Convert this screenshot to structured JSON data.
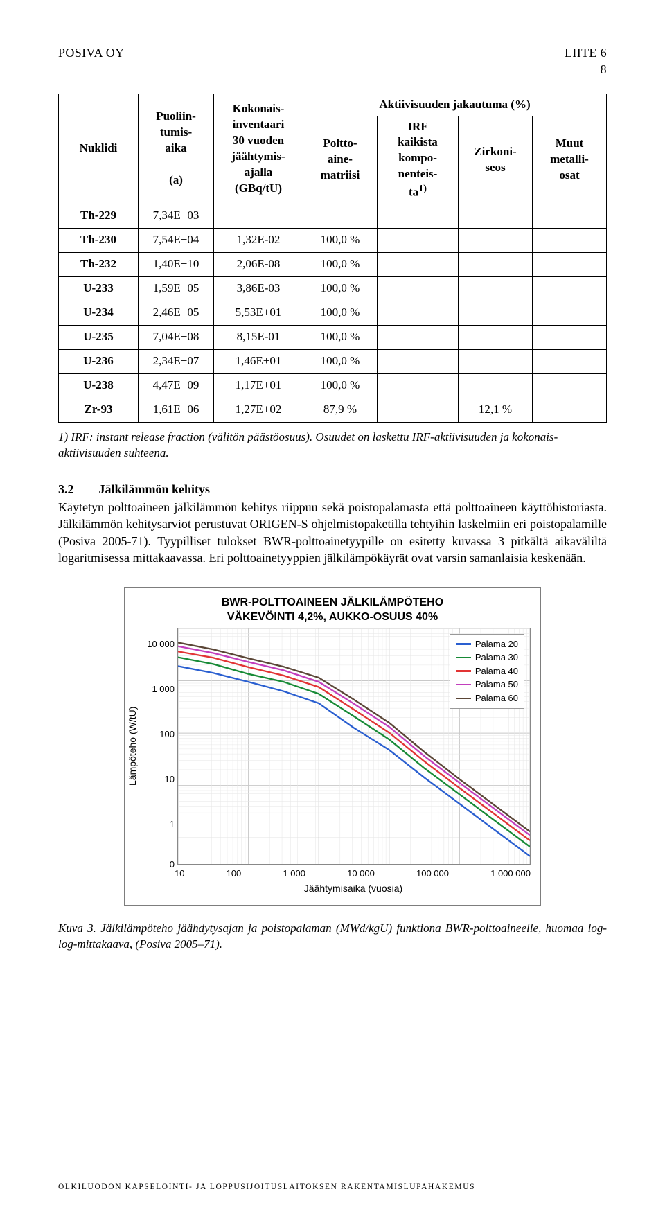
{
  "header": {
    "left": "POSIVA OY",
    "right_top": "LIITE 6",
    "right_sub": "8"
  },
  "table": {
    "columns": {
      "c1": "Nuklidi",
      "c2": "Puoliin-\ntumis-\naika",
      "c2b": "(a)",
      "c3": "Kokonais-\ninventaari\n30 vuoden\njäähtymis-\najalla\n(GBq/tU)",
      "c4": "Aktiivisuuden jakautuma (%)",
      "c4a": "Poltto-\naine-\nmatriisi",
      "c4b": "IRF\nkaikista\nkompo-\nnenteis-\nta",
      "c4b_sup": "1)",
      "c4c": "Zirkoni-\nseos",
      "c4d": "Muut\nmetalli-\nosat"
    },
    "rows": [
      {
        "n": "Th-229",
        "hl": "7,34E+03",
        "inv": "",
        "d": [
          "",
          "",
          "",
          ""
        ]
      },
      {
        "n": "Th-230",
        "hl": "7,54E+04",
        "inv": "1,32E-02",
        "d": [
          "100,0 %",
          "",
          "",
          ""
        ]
      },
      {
        "n": "Th-232",
        "hl": "1,40E+10",
        "inv": "2,06E-08",
        "d": [
          "100,0 %",
          "",
          "",
          ""
        ]
      },
      {
        "n": "U-233",
        "hl": "1,59E+05",
        "inv": "3,86E-03",
        "d": [
          "100,0 %",
          "",
          "",
          ""
        ]
      },
      {
        "n": "U-234",
        "hl": "2,46E+05",
        "inv": "5,53E+01",
        "d": [
          "100,0 %",
          "",
          "",
          ""
        ]
      },
      {
        "n": "U-235",
        "hl": "7,04E+08",
        "inv": "8,15E-01",
        "d": [
          "100,0 %",
          "",
          "",
          ""
        ]
      },
      {
        "n": "U-236",
        "hl": "2,34E+07",
        "inv": "1,46E+01",
        "d": [
          "100,0 %",
          "",
          "",
          ""
        ]
      },
      {
        "n": "U-238",
        "hl": "4,47E+09",
        "inv": "1,17E+01",
        "d": [
          "100,0 %",
          "",
          "",
          ""
        ]
      },
      {
        "n": "Zr-93",
        "hl": "1,61E+06",
        "inv": "1,27E+02",
        "d": [
          "87,9 %",
          "",
          "12,1 %",
          ""
        ]
      }
    ]
  },
  "footnote": "1) IRF: instant release fraction (välitön päästöosuus). Osuudet on laskettu IRF-aktiivisuuden ja kokonais-\naktiivisuuden suhteena.",
  "section": {
    "num": "3.2",
    "title": "Jälkilämmön kehitys"
  },
  "para": "Käytetyn polttoaineen jälkilämmön kehitys riippuu sekä poistopalamasta että polttoaineen käyttöhistoriasta. Jälkilämmön kehitysarviot perustuvat ORIGEN-S ohjelmistopaketilla tehtyihin laskelmiin eri poistopalamille (Posiva 2005-71). Tyypilliset tulokset BWR-polttoainetyypille on esitetty kuvassa 3 pitkältä aikaväliltä logaritmisessa mittakaavassa. Eri polttoainetyyppien jälkilämpökäyrät ovat varsin samanlaisia keskenään.",
  "chart": {
    "title_l1": "BWR-POLTTOAINEEN JÄLKILÄMPÖTEHO",
    "title_l2": "VÄKEVÖINTI 4,2%, AUKKO-OSUUS 40%",
    "ylabel": "Lämpöteho (W/tU)",
    "xlabel": "Jäähtymisaika (vuosia)",
    "yticks": [
      "0",
      "1",
      "10",
      "100",
      "1 000",
      "10 000"
    ],
    "ytick_pos": [
      100,
      83,
      64,
      45,
      26,
      7
    ],
    "xticks": [
      "10",
      "100",
      "1 000",
      "10 000",
      "100 000",
      "1 000 000"
    ],
    "series": [
      {
        "label": "Palama 20",
        "color": "#2a5fd0",
        "points": [
          [
            0,
            3.28
          ],
          [
            0.5,
            3.15
          ],
          [
            1.0,
            2.98
          ],
          [
            1.5,
            2.8
          ],
          [
            2.0,
            2.57
          ],
          [
            2.5,
            2.1
          ],
          [
            3.0,
            1.68
          ],
          [
            3.5,
            1.15
          ],
          [
            4.0,
            0.65
          ],
          [
            4.5,
            0.15
          ],
          [
            5.0,
            -0.35
          ]
        ]
      },
      {
        "label": "Palama 30",
        "color": "#178a36",
        "points": [
          [
            0,
            3.45
          ],
          [
            0.5,
            3.32
          ],
          [
            1.0,
            3.13
          ],
          [
            1.5,
            2.98
          ],
          [
            2.0,
            2.75
          ],
          [
            2.5,
            2.32
          ],
          [
            3.0,
            1.88
          ],
          [
            3.5,
            1.33
          ],
          [
            4.0,
            0.83
          ],
          [
            4.5,
            0.33
          ],
          [
            5.0,
            -0.17
          ]
        ]
      },
      {
        "label": "Palama 40",
        "color": "#e23434",
        "points": [
          [
            0,
            3.56
          ],
          [
            0.5,
            3.44
          ],
          [
            1.0,
            3.26
          ],
          [
            1.5,
            3.1
          ],
          [
            2.0,
            2.88
          ],
          [
            2.5,
            2.45
          ],
          [
            3.0,
            2.01
          ],
          [
            3.5,
            1.46
          ],
          [
            4.0,
            0.95
          ],
          [
            4.5,
            0.45
          ],
          [
            5.0,
            -0.05
          ]
        ]
      },
      {
        "label": "Palama 50",
        "color": "#c23fbd",
        "points": [
          [
            0,
            3.66
          ],
          [
            0.5,
            3.53
          ],
          [
            1.0,
            3.36
          ],
          [
            1.5,
            3.2
          ],
          [
            2.0,
            2.98
          ],
          [
            2.5,
            2.56
          ],
          [
            3.0,
            2.12
          ],
          [
            3.5,
            1.56
          ],
          [
            4.0,
            1.05
          ],
          [
            4.5,
            0.55
          ],
          [
            5.0,
            0.05
          ]
        ]
      },
      {
        "label": "Palama 60",
        "color": "#5a4536",
        "points": [
          [
            0,
            3.73
          ],
          [
            0.5,
            3.6
          ],
          [
            1.0,
            3.43
          ],
          [
            1.5,
            3.27
          ],
          [
            2.0,
            3.06
          ],
          [
            2.5,
            2.64
          ],
          [
            3.0,
            2.2
          ],
          [
            3.5,
            1.64
          ],
          [
            4.0,
            1.12
          ],
          [
            4.5,
            0.62
          ],
          [
            5.0,
            0.12
          ]
        ]
      }
    ],
    "x_domain": [
      0,
      5
    ],
    "y_domain": [
      -0.5,
      4
    ],
    "major_y": [
      0,
      1,
      2,
      3,
      4
    ],
    "major_x": [
      0,
      1,
      2,
      3,
      4,
      5
    ],
    "minor_per_decade": [
      0.301,
      0.477,
      0.602,
      0.699,
      0.778,
      0.845,
      0.903,
      0.954
    ]
  },
  "caption": "Kuva 3. Jälkilämpöteho jäähdytysajan ja poistopalaman (MWd/kgU) funktiona BWR-polttoaineelle, huomaa log-log-mittakaava, (Posiva 2005–71).",
  "footer": "OLKILUODON KAPSELOINTI- JA LOPPUSIJOITUSLAITOKSEN RAKENTAMISLUPAHAKEMUS"
}
